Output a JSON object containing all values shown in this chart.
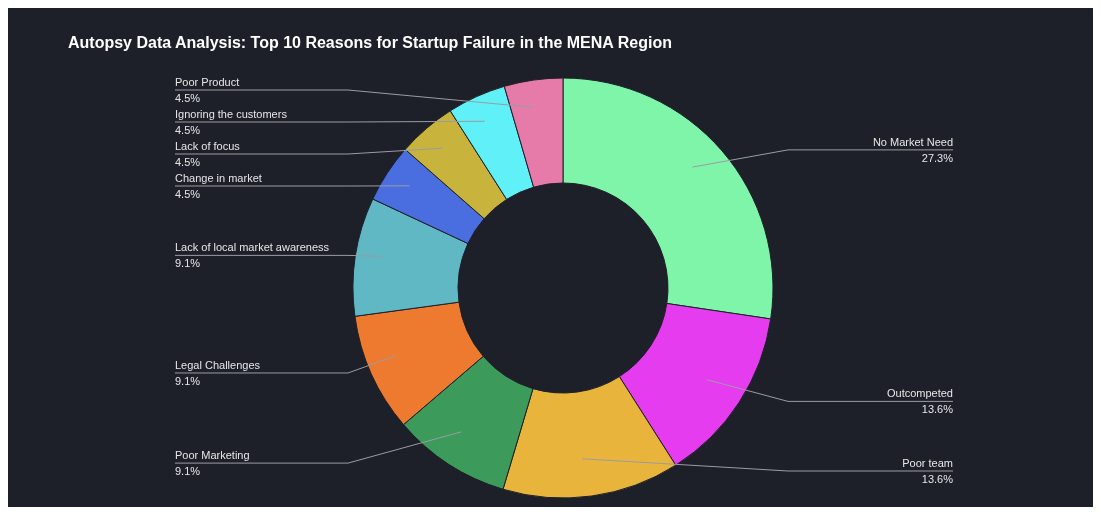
{
  "chart_data": {
    "type": "donut",
    "title": "Autopsy Data Analysis: Top 10 Reasons for Startup Failure in the MENA Region",
    "categories": [
      "No Market Need",
      "Outcompeted",
      "Poor team",
      "Poor Marketing",
      "Legal Challenges",
      "Lack of local market awareness",
      "Change in market",
      "Lack of focus",
      "Ignoring the customers",
      "Poor Product"
    ],
    "values": [
      27.3,
      13.6,
      13.6,
      9.1,
      9.1,
      9.1,
      4.5,
      4.5,
      4.5,
      4.5
    ],
    "value_labels": [
      "27.3%",
      "13.6%",
      "13.6%",
      "9.1%",
      "9.1%",
      "9.1%",
      "4.5%",
      "4.5%",
      "4.5%",
      "4.5%"
    ],
    "colors": [
      "#7ef5a8",
      "#e63cf0",
      "#e8b43c",
      "#3c9a5a",
      "#ee7a30",
      "#5fb8c4",
      "#4a6ee0",
      "#c8b43c",
      "#5ff0f8",
      "#e67aa8"
    ],
    "legend": false
  }
}
